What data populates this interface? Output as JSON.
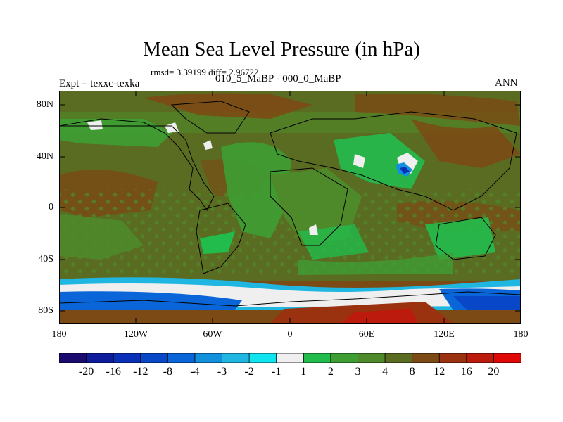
{
  "title": "Mean Sea Level Pressure (in hPa)",
  "stats_text": "rmsd= 3.39199 diff= 2.96722",
  "experiment_text": "Expt = texxc-texka",
  "period_text": "010_5_MaBP - 000_0_MaBP",
  "season_text": "ANN",
  "lat_labels": [
    "80N",
    "40N",
    "0",
    "40S",
    "80S"
  ],
  "lon_labels": [
    "180",
    "120W",
    "60W",
    "0",
    "60E",
    "120E",
    "180"
  ],
  "colorbar": {
    "labels": [
      "-20",
      "-16",
      "-12",
      "-8",
      "-4",
      "-3",
      "-2",
      "-1",
      "1",
      "2",
      "3",
      "4",
      "8",
      "12",
      "16",
      "20"
    ],
    "colors": [
      "#1a0a6e",
      "#0c1c9a",
      "#0a30b8",
      "#0848c8",
      "#0a66d8",
      "#1290dc",
      "#20b6e2",
      "#10e4ee",
      "#efefef",
      "#22bc4c",
      "#3e9e34",
      "#4e8a2a",
      "#5a6c22",
      "#7c4a14",
      "#9a3210",
      "#bc1a0c",
      "#e00806"
    ]
  },
  "palette": {
    "frame": "#000000",
    "white_band": "#f4f4f4"
  }
}
